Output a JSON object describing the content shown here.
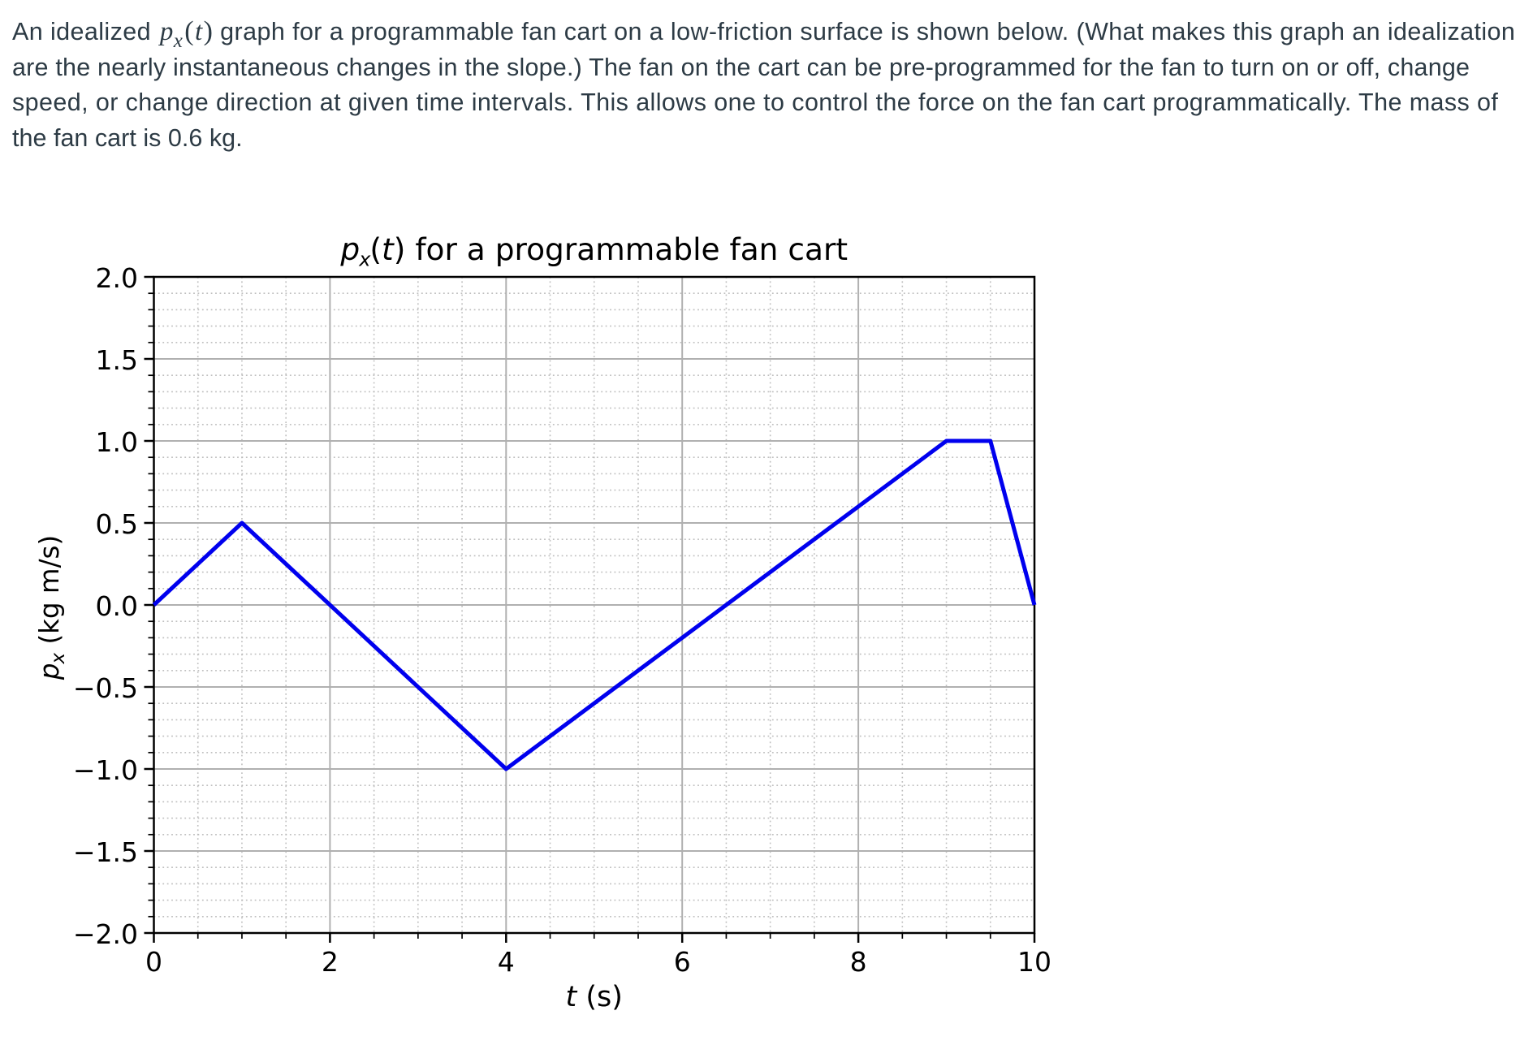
{
  "page": {
    "background": "#ffffff",
    "text_color": "#2d3b45"
  },
  "description": {
    "line1_pre": "An idealized ",
    "math": {
      "p": "p",
      "sub": "x",
      "open": "(",
      "t": "t",
      "close": ")"
    },
    "line1_post": " graph for a programmable fan cart on a low-friction surface is shown below. (What makes this graph an idealization",
    "line2": "are the nearly instantaneous changes in the slope.) The fan on the cart can be pre-programmed for the fan to turn on or off, change",
    "line3": "speed, or change direction at given time intervals. This allows one to control the force on the fan cart programmatically. The mass of",
    "line4": "the fan cart is 0.6 kg."
  },
  "chart_data": {
    "type": "line",
    "title": {
      "math_p": "p",
      "math_sub": "x",
      "paren_open": "(",
      "math_t": "t",
      "paren_close": ")",
      "rest": " for a programmable fan cart"
    },
    "xlabel": {
      "math_t": "t",
      "rest": " (s)"
    },
    "ylabel": {
      "math_p": "p",
      "math_sub": "x",
      "rest": " (kg m/s)"
    },
    "series": [
      {
        "name": "px",
        "x": [
          0,
          1,
          4,
          9,
          9.5,
          10
        ],
        "y": [
          0.0,
          0.5,
          -1.0,
          1.0,
          1.0,
          0.0
        ]
      }
    ],
    "xlim": [
      0,
      10
    ],
    "ylim": [
      -2.0,
      2.0
    ],
    "xticks": {
      "values": [
        0,
        2,
        4,
        6,
        8,
        10
      ],
      "labels": [
        "0",
        "2",
        "4",
        "6",
        "8",
        "10"
      ]
    },
    "yticks": {
      "values": [
        2.0,
        1.5,
        1.0,
        0.5,
        0.0,
        -0.5,
        -1.0,
        -1.5,
        -2.0
      ],
      "labels": [
        "2.0",
        "1.5",
        "1.0",
        "0.5",
        "0.0",
        "−0.5",
        "−1.0",
        "−1.5",
        "−2.0"
      ]
    },
    "minor_x_step": 0.5,
    "minor_y_step": 0.1,
    "grid": {
      "major": true,
      "minor": true,
      "major_color": "#b0b0b0",
      "minor_color": "#b4b4b4"
    },
    "line_color": "#0000ee",
    "axis_color": "#000000",
    "legend": "none"
  }
}
